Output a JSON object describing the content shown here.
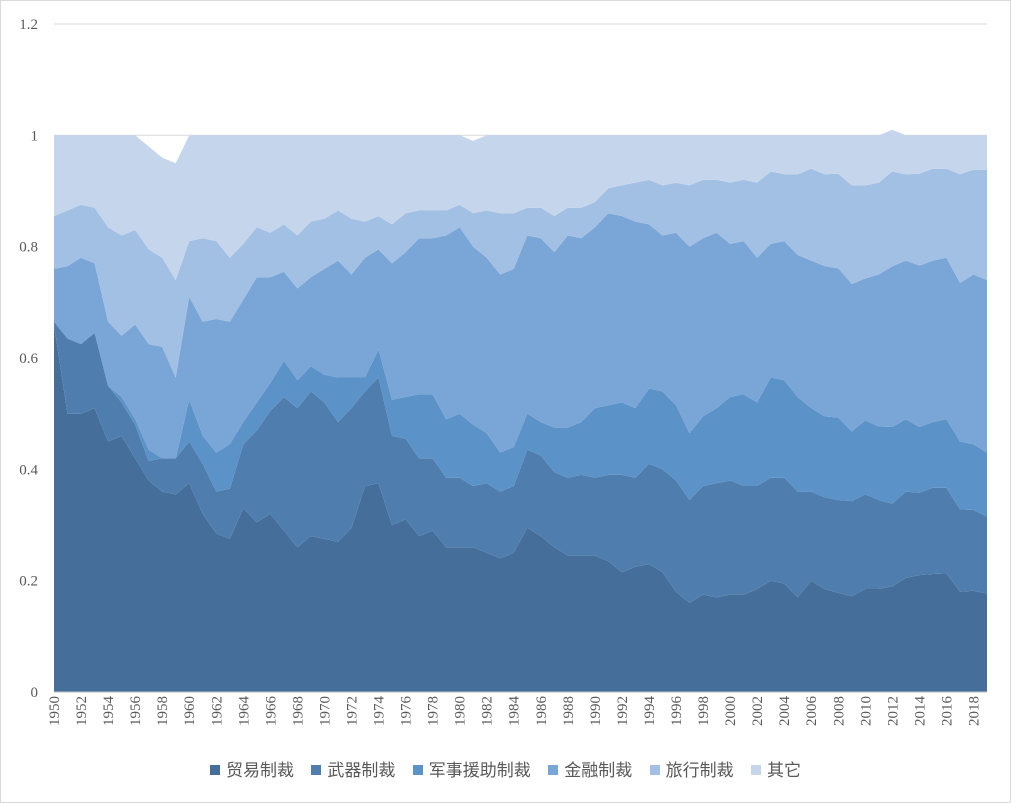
{
  "chart_data": {
    "type": "area",
    "stacked": true,
    "x": [
      1950,
      1951,
      1952,
      1953,
      1954,
      1955,
      1956,
      1957,
      1958,
      1959,
      1960,
      1961,
      1962,
      1963,
      1964,
      1965,
      1966,
      1967,
      1968,
      1969,
      1970,
      1971,
      1972,
      1973,
      1974,
      1975,
      1976,
      1977,
      1978,
      1979,
      1980,
      1981,
      1982,
      1983,
      1984,
      1985,
      1986,
      1987,
      1988,
      1989,
      1990,
      1991,
      1992,
      1993,
      1994,
      1995,
      1996,
      1997,
      1998,
      1999,
      2000,
      2001,
      2002,
      2003,
      2004,
      2005,
      2006,
      2007,
      2008,
      2009,
      2010,
      2011,
      2012,
      2013,
      2014,
      2015,
      2016,
      2017,
      2018,
      2019
    ],
    "x_tick_labels": [
      "1950",
      "1952",
      "1954",
      "1956",
      "1958",
      "1960",
      "1962",
      "1964",
      "1966",
      "1968",
      "1970",
      "1972",
      "1974",
      "1976",
      "1978",
      "1980",
      "1982",
      "1984",
      "1986",
      "1988",
      "1990",
      "1992",
      "1994",
      "1996",
      "1998",
      "2000",
      "2002",
      "2004",
      "2006",
      "2008",
      "2010",
      "2012",
      "2014",
      "2016",
      "2018"
    ],
    "y_tick_labels": [
      "0",
      "0.2",
      "0.4",
      "0.6",
      "0.8",
      "1",
      "1.2"
    ],
    "ylim": [
      0,
      1.2
    ],
    "y_step": 0.2,
    "grid": "horizontal",
    "legend_position": "bottom",
    "title": "",
    "xlabel": "",
    "ylabel": "",
    "series": [
      {
        "name": "贸易制裁",
        "color": "#456f9a",
        "values": [
          0.66,
          0.5,
          0.5,
          0.51,
          0.45,
          0.46,
          0.42,
          0.38,
          0.36,
          0.355,
          0.375,
          0.32,
          0.285,
          0.275,
          0.33,
          0.305,
          0.32,
          0.29,
          0.26,
          0.28,
          0.275,
          0.27,
          0.295,
          0.37,
          0.375,
          0.3,
          0.31,
          0.28,
          0.29,
          0.26,
          0.26,
          0.26,
          0.25,
          0.24,
          0.25,
          0.295,
          0.28,
          0.26,
          0.245,
          0.245,
          0.245,
          0.235,
          0.215,
          0.225,
          0.23,
          0.215,
          0.18,
          0.16,
          0.175,
          0.17,
          0.175,
          0.175,
          0.185,
          0.2,
          0.195,
          0.17,
          0.2,
          0.185,
          0.178,
          0.172,
          0.185,
          0.185,
          0.19,
          0.205,
          0.21,
          0.212,
          0.213,
          0.18,
          0.182,
          0.177
        ]
      },
      {
        "name": "武器制裁",
        "color": "#4f7eae",
        "values": [
          0.005,
          0.135,
          0.125,
          0.135,
          0.1,
          0.06,
          0.06,
          0.035,
          0.06,
          0.065,
          0.075,
          0.09,
          0.075,
          0.09,
          0.115,
          0.165,
          0.185,
          0.24,
          0.25,
          0.26,
          0.245,
          0.215,
          0.215,
          0.17,
          0.19,
          0.16,
          0.145,
          0.14,
          0.13,
          0.125,
          0.125,
          0.11,
          0.125,
          0.12,
          0.12,
          0.14,
          0.145,
          0.135,
          0.14,
          0.145,
          0.14,
          0.155,
          0.175,
          0.16,
          0.18,
          0.185,
          0.2,
          0.185,
          0.195,
          0.205,
          0.205,
          0.195,
          0.185,
          0.185,
          0.19,
          0.19,
          0.16,
          0.165,
          0.167,
          0.171,
          0.17,
          0.16,
          0.148,
          0.155,
          0.148,
          0.155,
          0.154,
          0.148,
          0.145,
          0.138
        ]
      },
      {
        "name": "军事援助制裁",
        "color": "#5b92c8",
        "values": [
          0,
          0,
          0,
          0,
          0,
          0.01,
          0.01,
          0.02,
          0,
          0,
          0.075,
          0.05,
          0.07,
          0.08,
          0.04,
          0.05,
          0.05,
          0.065,
          0.05,
          0.045,
          0.05,
          0.08,
          0.055,
          0.025,
          0.05,
          0.065,
          0.075,
          0.115,
          0.115,
          0.105,
          0.115,
          0.11,
          0.09,
          0.07,
          0.07,
          0.065,
          0.06,
          0.08,
          0.09,
          0.095,
          0.125,
          0.125,
          0.13,
          0.125,
          0.135,
          0.14,
          0.135,
          0.12,
          0.125,
          0.135,
          0.15,
          0.165,
          0.15,
          0.18,
          0.175,
          0.17,
          0.15,
          0.145,
          0.148,
          0.125,
          0.133,
          0.132,
          0.138,
          0.13,
          0.118,
          0.118,
          0.123,
          0.122,
          0.118,
          0.115
        ]
      },
      {
        "name": "金融制裁",
        "color": "#79a6d6",
        "values": [
          0.095,
          0.13,
          0.155,
          0.125,
          0.115,
          0.11,
          0.17,
          0.19,
          0.2,
          0.145,
          0.185,
          0.205,
          0.24,
          0.22,
          0.22,
          0.225,
          0.19,
          0.16,
          0.165,
          0.16,
          0.19,
          0.21,
          0.185,
          0.215,
          0.18,
          0.245,
          0.26,
          0.28,
          0.28,
          0.33,
          0.335,
          0.32,
          0.315,
          0.32,
          0.32,
          0.32,
          0.33,
          0.315,
          0.345,
          0.33,
          0.325,
          0.345,
          0.335,
          0.335,
          0.295,
          0.28,
          0.31,
          0.335,
          0.32,
          0.315,
          0.275,
          0.275,
          0.26,
          0.24,
          0.25,
          0.255,
          0.265,
          0.27,
          0.268,
          0.265,
          0.255,
          0.273,
          0.289,
          0.285,
          0.29,
          0.29,
          0.29,
          0.285,
          0.305,
          0.31
        ]
      },
      {
        "name": "旅行制裁",
        "color": "#a2c0e4",
        "values": [
          0.095,
          0.1,
          0.095,
          0.1,
          0.17,
          0.18,
          0.17,
          0.17,
          0.16,
          0.175,
          0.1,
          0.15,
          0.14,
          0.115,
          0.1,
          0.09,
          0.08,
          0.085,
          0.095,
          0.1,
          0.09,
          0.09,
          0.1,
          0.065,
          0.06,
          0.07,
          0.07,
          0.05,
          0.05,
          0.045,
          0.04,
          0.06,
          0.085,
          0.11,
          0.1,
          0.05,
          0.055,
          0.065,
          0.05,
          0.055,
          0.045,
          0.045,
          0.055,
          0.07,
          0.08,
          0.09,
          0.09,
          0.11,
          0.105,
          0.095,
          0.11,
          0.11,
          0.135,
          0.13,
          0.12,
          0.145,
          0.165,
          0.165,
          0.17,
          0.177,
          0.167,
          0.165,
          0.17,
          0.155,
          0.165,
          0.165,
          0.16,
          0.195,
          0.188,
          0.198
        ]
      },
      {
        "name": "其它",
        "color": "#c5d6ec",
        "values": [
          0.145,
          0.135,
          0.125,
          0.13,
          0.165,
          0.18,
          0.17,
          0.185,
          0.18,
          0.21,
          0.19,
          0.185,
          0.19,
          0.22,
          0.195,
          0.165,
          0.175,
          0.16,
          0.18,
          0.155,
          0.15,
          0.135,
          0.15,
          0.155,
          0.145,
          0.16,
          0.14,
          0.135,
          0.135,
          0.135,
          0.125,
          0.13,
          0.135,
          0.14,
          0.14,
          0.13,
          0.13,
          0.145,
          0.13,
          0.13,
          0.12,
          0.095,
          0.09,
          0.085,
          0.08,
          0.09,
          0.085,
          0.09,
          0.08,
          0.08,
          0.085,
          0.08,
          0.085,
          0.065,
          0.07,
          0.07,
          0.06,
          0.07,
          0.069,
          0.09,
          0.09,
          0.085,
          0.075,
          0.07,
          0.069,
          0.06,
          0.06,
          0.07,
          0.062,
          0.062
        ]
      }
    ]
  },
  "legend": [
    {
      "label": "贸易制裁",
      "color": "#456f9a"
    },
    {
      "label": "武器制裁",
      "color": "#4f7eae"
    },
    {
      "label": "军事援助制裁",
      "color": "#5b92c8"
    },
    {
      "label": "金融制裁",
      "color": "#79a6d6"
    },
    {
      "label": "旅行制裁",
      "color": "#a2c0e4"
    },
    {
      "label": "其它",
      "color": "#c5d6ec"
    }
  ]
}
